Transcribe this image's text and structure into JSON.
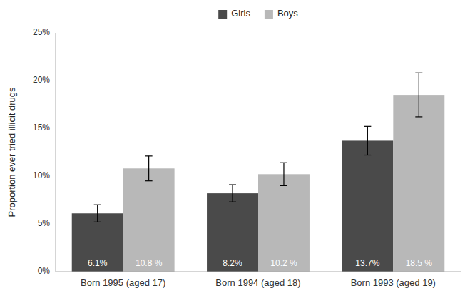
{
  "chart_data": {
    "type": "bar",
    "ylabel": "Proportion ever tried illicit drugs",
    "categories": [
      "Born 1995 (aged 17)",
      "Born 1994 (aged 18)",
      "Born 1993 (aged 19)"
    ],
    "series": [
      {
        "name": "Girls",
        "color": "#4a4a4a",
        "values": [
          6.1,
          8.2,
          13.7
        ],
        "errors": [
          0.9,
          0.9,
          1.5
        ],
        "value_labels": [
          "6.1%",
          "8.2%",
          "13.7%"
        ]
      },
      {
        "name": "Boys",
        "color": "#b8b8b8",
        "values": [
          10.8,
          10.2,
          18.5
        ],
        "errors": [
          1.3,
          1.2,
          2.3
        ],
        "value_labels": [
          "10.8 %",
          "10.2 %",
          "18.5 %"
        ]
      }
    ],
    "ylim": [
      0,
      25
    ],
    "yticks": [
      {
        "value": 0,
        "label": "0%"
      },
      {
        "value": 5,
        "label": "5%"
      },
      {
        "value": 10,
        "label": "10%"
      },
      {
        "value": 15,
        "label": "15%"
      },
      {
        "value": 20,
        "label": "20%"
      },
      {
        "value": 25,
        "label": "25%"
      }
    ],
    "data_labels": true,
    "legend": "top",
    "grid": false
  }
}
